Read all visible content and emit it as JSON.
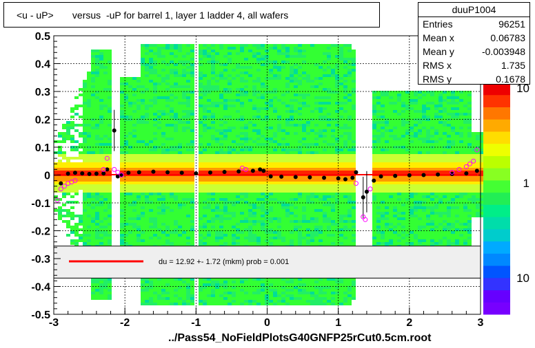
{
  "title": "<u - uP>       versus  -uP for barrel 1, layer 1 ladder 4, all wafers",
  "footer": "../Pass54_NoFieldPlotsG40GNFP25rCut0.5cm.root",
  "stats": {
    "name": "duuP1004",
    "rows": [
      {
        "label": "Entries",
        "value": "96251"
      },
      {
        "label": "Mean x",
        "value": "0.06783"
      },
      {
        "label": "Mean y",
        "value": "-0.003948"
      },
      {
        "label": "RMS x",
        "value": "1.735"
      },
      {
        "label": "RMS y",
        "value": "0.1678"
      }
    ]
  },
  "colors": {
    "fit_line": "#ff0000",
    "profile": "#000000",
    "secondary": "#ff00ff",
    "legend_bg": "#efefef"
  },
  "chart_data": {
    "type": "heatmap",
    "xlim": [
      -3,
      3
    ],
    "ylim": [
      -0.5,
      0.5
    ],
    "x_ticks": [
      -3,
      -2,
      -1,
      0,
      1,
      2,
      3
    ],
    "y_ticks": [
      -0.5,
      -0.4,
      -0.3,
      -0.2,
      -0.1,
      0,
      0.1,
      0.2,
      0.3,
      0.4,
      0.5
    ],
    "z_scale": "log",
    "z_tick_labels": [
      "10",
      "1",
      "10"
    ],
    "grid": true,
    "empty_x_bands": [
      [
        -2.2,
        -2.05
      ],
      [
        -1.0,
        -0.98
      ],
      [
        1.22,
        1.45
      ]
    ],
    "legend": {
      "text": "du =   12.92 +-  1.72 (mkm) prob = 0.001"
    },
    "fit": {
      "x": [
        -2.95,
        2.95
      ],
      "y": [
        0.00129,
        0.00129
      ]
    },
    "profile": {
      "x": [
        -2.9,
        -2.8,
        -2.7,
        -2.6,
        -2.5,
        -2.4,
        -2.3,
        -2.25,
        -2.15,
        -2.1,
        -2.05,
        -1.95,
        -1.8,
        -1.6,
        -1.4,
        -1.2,
        -1.0,
        -0.8,
        -0.6,
        -0.4,
        -0.2,
        -0.1,
        -0.05,
        0.05,
        0.2,
        0.4,
        0.6,
        0.8,
        1.0,
        1.1,
        1.2,
        1.25,
        1.35,
        1.4,
        1.5,
        1.6,
        1.8,
        2.0,
        2.2,
        2.4,
        2.6,
        2.8,
        2.95
      ],
      "y": [
        -0.03,
        0.005,
        0.008,
        0.006,
        0.004,
        0.005,
        0.006,
        0.02,
        0.16,
        -0.005,
        0.0,
        0.008,
        0.01,
        0.012,
        0.01,
        0.008,
        0.006,
        0.009,
        0.011,
        0.013,
        0.015,
        0.02,
        0.015,
        -0.005,
        -0.006,
        -0.007,
        -0.008,
        -0.01,
        -0.012,
        -0.015,
        -0.01,
        0.01,
        -0.08,
        -0.06,
        -0.02,
        -0.005,
        -0.003,
        -0.001,
        0.0,
        0.002,
        0.004,
        0.006,
        0.015
      ]
    },
    "secondary": {
      "x": [
        -2.95,
        -2.9,
        -2.85,
        -2.8,
        -2.75,
        -2.7,
        -2.3,
        -2.25,
        -2.15,
        -2.1,
        -2.05,
        -0.35,
        -0.3,
        1.25,
        1.35,
        1.38,
        1.45,
        2.6,
        2.7,
        2.8,
        2.85,
        2.9,
        2.95
      ],
      "y": [
        -0.09,
        -0.05,
        -0.04,
        -0.03,
        -0.025,
        -0.02,
        0.02,
        0.06,
        0.02,
        0.01,
        0.0,
        0.025,
        0.02,
        -0.03,
        -0.15,
        -0.16,
        -0.05,
        0.01,
        0.02,
        0.03,
        0.04,
        0.05,
        0.09
      ]
    }
  }
}
